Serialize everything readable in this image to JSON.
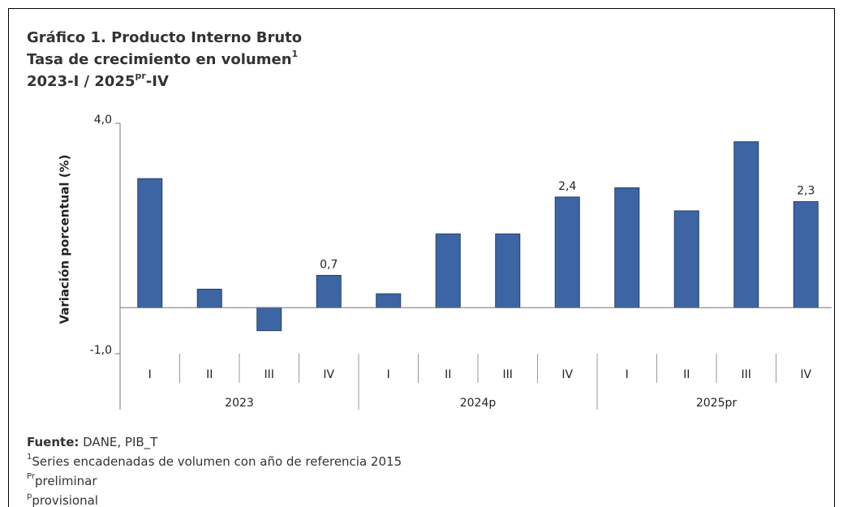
{
  "chart_data": {
    "type": "bar",
    "title": "Gráfico 1. Producto Interno Bruto",
    "subtitle": "Tasa de crecimiento en volumen",
    "subtitle_note": "1",
    "period": [
      "2023-I / 2025",
      "pr",
      "-IV"
    ],
    "y_label": "Variación porcentual (%)",
    "categories": [
      "I",
      "II",
      "III",
      "IV",
      "I",
      "II",
      "III",
      "IV",
      "I",
      "II",
      "III",
      "IV"
    ],
    "groups": [
      "2023",
      "2024p",
      "2025pr"
    ],
    "values": [
      2.8,
      0.4,
      -0.5,
      0.7,
      0.3,
      1.6,
      1.6,
      2.4,
      2.6,
      2.1,
      3.6,
      2.3
    ],
    "value_labels": [
      null,
      null,
      null,
      "0,7",
      null,
      null,
      null,
      "2,4",
      null,
      null,
      null,
      "2,3"
    ],
    "color": "#3d65a3",
    "ylim": [
      -1.0,
      4.0
    ],
    "yticks": [
      {
        "value": 4.0,
        "label": "4,0"
      },
      {
        "value": -1.0,
        "label": "-1,0"
      }
    ],
    "grid": false,
    "notes": [
      [
        "Fuente:",
        " DANE, PIB_T"
      ],
      [
        "1",
        "Series encadenadas de volumen con año de referencia 2015"
      ],
      [
        "Pr",
        "preliminar"
      ],
      [
        "p",
        "provisional"
      ]
    ]
  }
}
